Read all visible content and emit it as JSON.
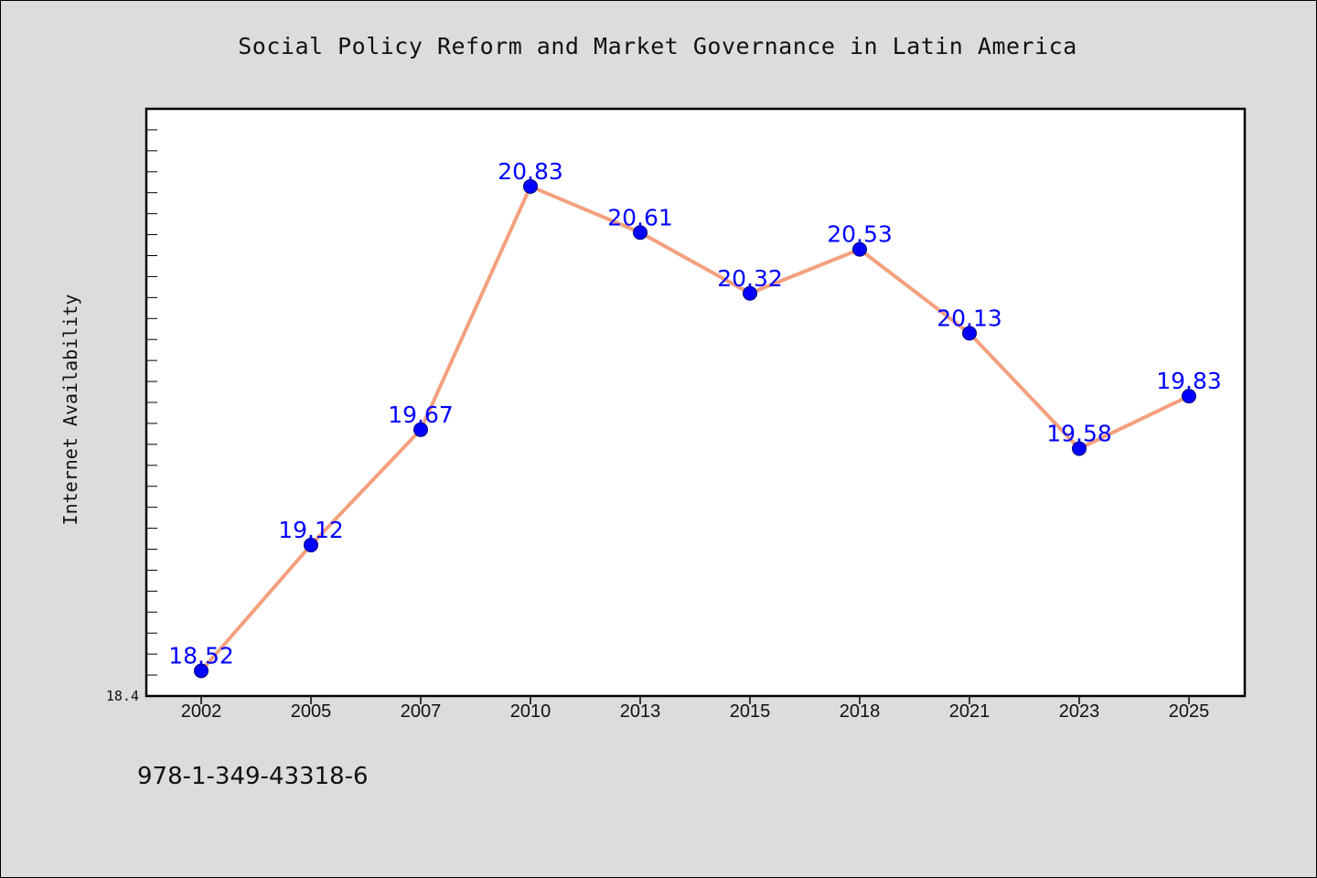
{
  "colors": {
    "background": "#dcdcdc",
    "plot_background": "#ffffff",
    "line": "#f4a07e",
    "marker": "#0000ff",
    "data_label": "#0000ff",
    "axis": "#000000"
  },
  "footer_code": "978-1-349-43318-6",
  "chart_data": {
    "type": "line",
    "title": "Social Policy Reform and Market Governance in Latin America",
    "xlabel": "",
    "ylabel": "Internet Availability",
    "categories": [
      "2002",
      "2005",
      "2007",
      "2010",
      "2013",
      "2015",
      "2018",
      "2021",
      "2023",
      "2025"
    ],
    "series": [
      {
        "values": [
          18.52,
          19.12,
          19.67,
          20.83,
          20.61,
          20.32,
          20.53,
          20.13,
          19.58,
          19.83
        ],
        "labels": [
          "18.52",
          "19.12",
          "19.67",
          "20.83",
          "20.61",
          "20.32",
          "20.53",
          "20.13",
          "19.58",
          "19.83"
        ]
      }
    ],
    "ylim": [
      18.4,
      21.2
    ],
    "y_tick_labels": [
      "18.4"
    ],
    "grid": false,
    "legend": "none"
  }
}
